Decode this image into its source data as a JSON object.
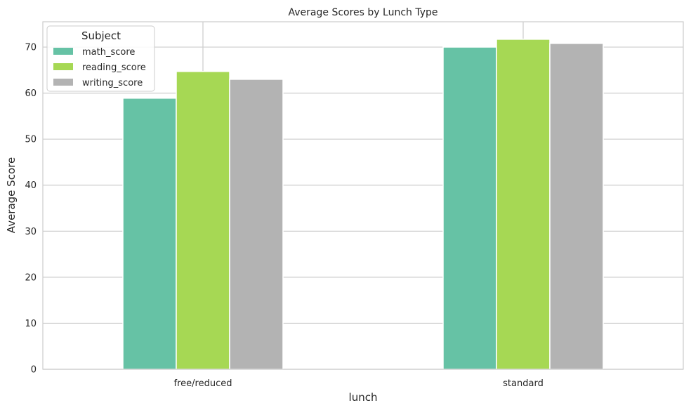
{
  "chart_data": {
    "type": "bar",
    "title": "Average Scores by Lunch Type",
    "xlabel": "lunch",
    "ylabel": "Average Score",
    "categories": [
      "free/reduced",
      "standard"
    ],
    "series": [
      {
        "name": "math_score",
        "values": [
          58.9,
          70.0
        ],
        "color": "#66c2a5"
      },
      {
        "name": "reading_score",
        "values": [
          64.7,
          71.7
        ],
        "color": "#a6d854"
      },
      {
        "name": "writing_score",
        "values": [
          63.0,
          70.8
        ],
        "color": "#b3b3b3"
      }
    ],
    "ylim": [
      0,
      75.5
    ],
    "yticks": [
      0,
      10,
      20,
      30,
      40,
      50,
      60,
      70
    ],
    "grid": true,
    "legend": {
      "title": "Subject",
      "position": "top-left"
    }
  }
}
